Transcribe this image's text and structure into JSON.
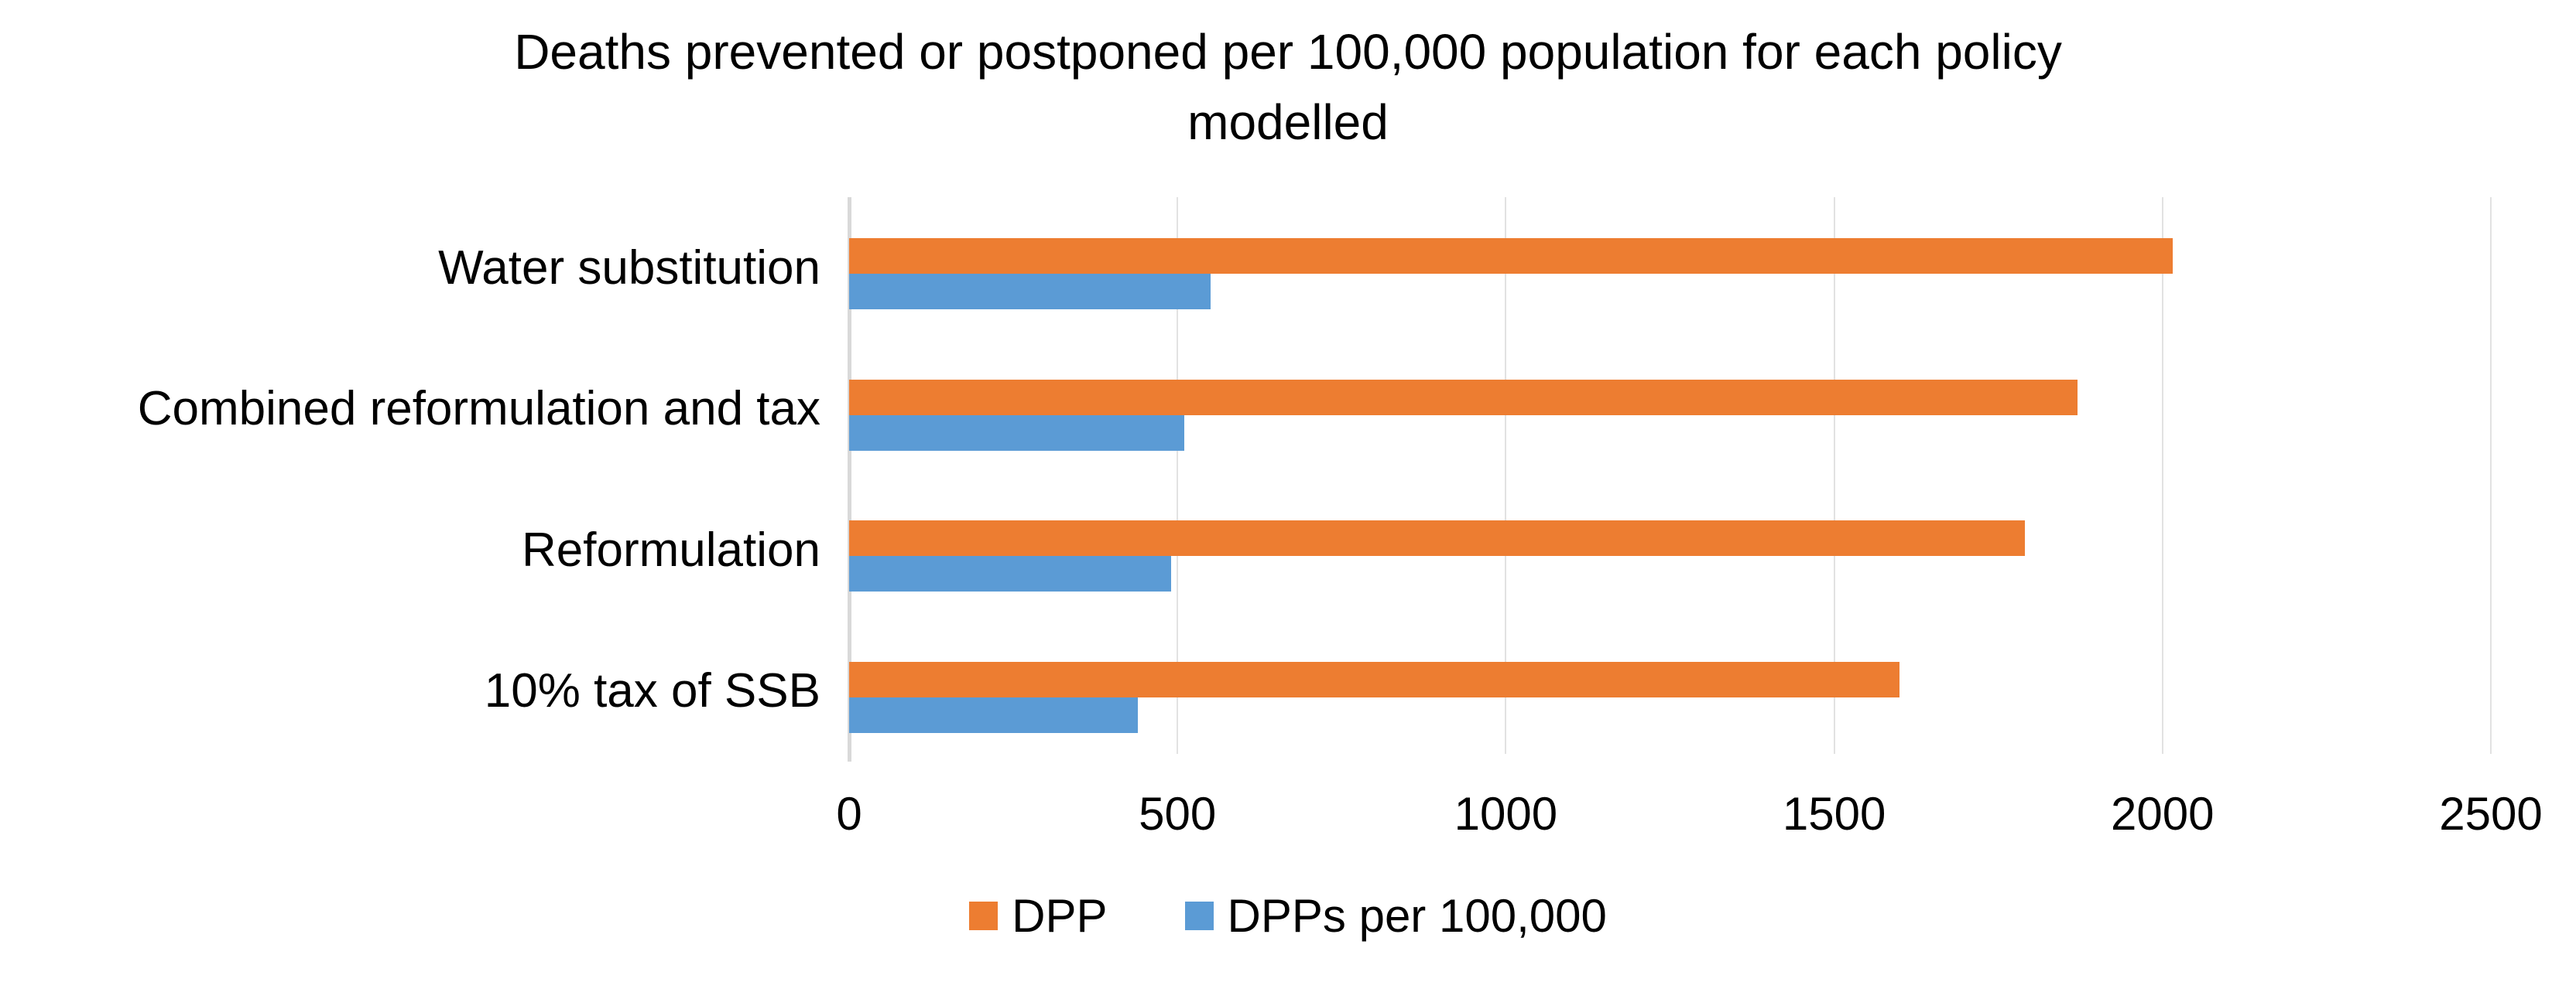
{
  "chart_data": {
    "type": "bar",
    "orientation": "horizontal",
    "title": "Deaths prevented or postponed per 100,000 population for each policy modelled",
    "title_lines": [
      "Deaths prevented or postponed per 100,000 population for each policy",
      "modelled"
    ],
    "categories": [
      "Water substitution",
      "Combined reformulation and tax",
      "Reformulation",
      "10% tax of SSB"
    ],
    "series": [
      {
        "name": "DPP",
        "color": "#ED7D31",
        "values": [
          2015,
          1870,
          1790,
          1600
        ]
      },
      {
        "name": "DPPs per 100,000",
        "color": "#5B9BD5",
        "values": [
          550,
          510,
          490,
          440
        ]
      }
    ],
    "xlim": [
      0,
      2500
    ],
    "xticks": [
      0,
      500,
      1000,
      1500,
      2000,
      2500
    ],
    "grid": "vertical-gridlines-on",
    "legend_position": "bottom",
    "colors": {
      "gridline": "#E2E2E2",
      "axis_line": "#D9D9D9",
      "text": "#000000",
      "background": "#FFFFFF"
    }
  }
}
